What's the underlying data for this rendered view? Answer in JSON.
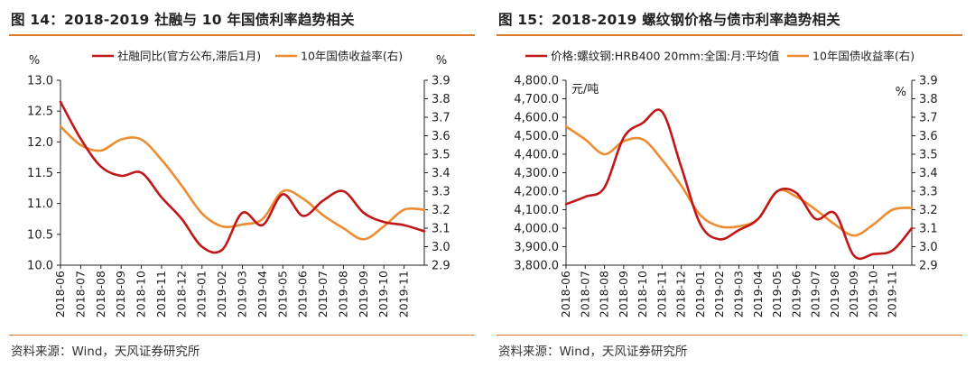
{
  "panels": [
    {
      "title": "图 14：2018-2019 社融与 10 年国债利率趋势相关",
      "source": "资料来源：Wind，天风证券研究所"
    },
    {
      "title": "图 15：2018-2019 螺纹钢价格与债市利率趋势相关",
      "source": "资料来源：Wind，天风证券研究所"
    }
  ],
  "colors": {
    "series_primary": "#C01818",
    "series_secondary": "#ED8C32",
    "accent_rule": "#E07A28",
    "axis": "#222222"
  },
  "chart_data": [
    {
      "type": "line",
      "title": "",
      "x": [
        "2018-06",
        "2018-07",
        "2018-08",
        "2018-09",
        "2018-10",
        "2018-11",
        "2018-12",
        "2019-01",
        "2019-02",
        "2019-03",
        "2019-04",
        "2019-05",
        "2019-06",
        "2019-07",
        "2019-08",
        "2019-09",
        "2019-10",
        "2019-11"
      ],
      "x_tick_labels": [
        "2018-06",
        "2018-07",
        "2018-08",
        "2018-09",
        "2018-10",
        "2018-11",
        "2018-12",
        "2019-01",
        "2019-02",
        "2019-03",
        "2019-04",
        "2019-05",
        "2019-06",
        "2019-07",
        "2019-08",
        "2019-09",
        "2019-10",
        "2019-11"
      ],
      "left_axis": {
        "label": "%",
        "ylim": [
          10.0,
          13.0
        ],
        "ticks": [
          "13.0",
          "12.5",
          "12.0",
          "11.5",
          "11.0",
          "10.5",
          "10.0"
        ]
      },
      "right_axis": {
        "label": "%",
        "ylim": [
          2.9,
          3.9
        ],
        "ticks": [
          "3.9",
          "3.8",
          "3.7",
          "3.6",
          "3.5",
          "3.4",
          "3.3",
          "3.2",
          "3.1",
          "3.0",
          "2.9"
        ]
      },
      "legend_position": "top",
      "grid": false,
      "series": [
        {
          "name": "社融同比(官方公布,滞后1月)",
          "axis": "left",
          "x": [
            "2018-06",
            "2018-07",
            "2018-08",
            "2018-09",
            "2018-10",
            "2018-11",
            "2018-12",
            "2019-01",
            "2019-02",
            "2019-03",
            "2019-04",
            "2019-05",
            "2019-06",
            "2019-07",
            "2019-08",
            "2019-09",
            "2019-10",
            "2019-11",
            "2019-12"
          ],
          "values": [
            12.65,
            12.05,
            11.6,
            11.45,
            11.5,
            11.1,
            10.75,
            10.3,
            10.25,
            10.85,
            10.65,
            11.15,
            10.8,
            11.05,
            11.2,
            10.85,
            10.7,
            10.65,
            10.55
          ]
        },
        {
          "name": "10年国债收益率(右)",
          "axis": "right",
          "x": [
            "2018-06",
            "2018-07",
            "2018-08",
            "2018-09",
            "2018-10",
            "2018-11",
            "2018-12",
            "2019-01",
            "2019-02",
            "2019-03",
            "2019-04",
            "2019-05",
            "2019-06",
            "2019-07",
            "2019-08",
            "2019-09",
            "2019-10",
            "2019-11",
            "2019-12"
          ],
          "values": [
            3.65,
            3.55,
            3.52,
            3.58,
            3.58,
            3.47,
            3.33,
            3.18,
            3.11,
            3.12,
            3.15,
            3.3,
            3.26,
            3.17,
            3.1,
            3.04,
            3.11,
            3.2,
            3.2
          ]
        }
      ]
    },
    {
      "type": "line",
      "title": "",
      "x": [
        "2018-06",
        "2018-07",
        "2018-08",
        "2018-09",
        "2018-10",
        "2018-11",
        "2018-12",
        "2019-01",
        "2019-02",
        "2019-03",
        "2019-04",
        "2019-05",
        "2019-06",
        "2019-07",
        "2019-08",
        "2019-09",
        "2019-10",
        "2019-11"
      ],
      "x_tick_labels": [
        "2018-06",
        "2018-07",
        "2018-08",
        "2018-09",
        "2018-10",
        "2018-11",
        "2018-12",
        "2019-01",
        "2019-02",
        "2019-03",
        "2019-04",
        "2019-05",
        "2019-06",
        "2019-07",
        "2019-08",
        "2019-09",
        "2019-10",
        "2019-11"
      ],
      "left_axis": {
        "label": "元/吨",
        "ylim": [
          3800,
          4800
        ],
        "ticks": [
          "4,800.0",
          "4,700.0",
          "4,600.0",
          "4,500.0",
          "4,400.0",
          "4,300.0",
          "4,200.0",
          "4,100.0",
          "4,000.0",
          "3,900.0",
          "3,800.0"
        ]
      },
      "right_axis": {
        "label": "%",
        "ylim": [
          2.9,
          3.9
        ],
        "ticks": [
          "3.9",
          "3.8",
          "3.7",
          "3.6",
          "3.5",
          "3.4",
          "3.3",
          "3.2",
          "3.1",
          "3.0",
          "2.9"
        ]
      },
      "legend_position": "top",
      "grid": false,
      "series": [
        {
          "name": "价格:螺纹钢:HRB400 20mm:全国:月:平均值",
          "axis": "left",
          "x": [
            "2018-06",
            "2018-07",
            "2018-08",
            "2018-09",
            "2018-10",
            "2018-11",
            "2018-12",
            "2019-01",
            "2019-02",
            "2019-03",
            "2019-04",
            "2019-05",
            "2019-06",
            "2019-07",
            "2019-08",
            "2019-09",
            "2019-10",
            "2019-11",
            "2019-12"
          ],
          "values": [
            4130,
            4170,
            4220,
            4490,
            4570,
            4630,
            4330,
            4020,
            3940,
            3990,
            4050,
            4200,
            4190,
            4050,
            4080,
            3850,
            3860,
            3880,
            4000
          ]
        },
        {
          "name": "10年国债收益率(右)",
          "axis": "right",
          "x": [
            "2018-06",
            "2018-07",
            "2018-08",
            "2018-09",
            "2018-10",
            "2018-11",
            "2018-12",
            "2019-01",
            "2019-02",
            "2019-03",
            "2019-04",
            "2019-05",
            "2019-06",
            "2019-07",
            "2019-08",
            "2019-09",
            "2019-10",
            "2019-11",
            "2019-12"
          ],
          "values": [
            3.65,
            3.58,
            3.5,
            3.57,
            3.58,
            3.47,
            3.33,
            3.17,
            3.11,
            3.11,
            3.15,
            3.3,
            3.27,
            3.2,
            3.12,
            3.06,
            3.12,
            3.2,
            3.21
          ]
        }
      ]
    }
  ]
}
